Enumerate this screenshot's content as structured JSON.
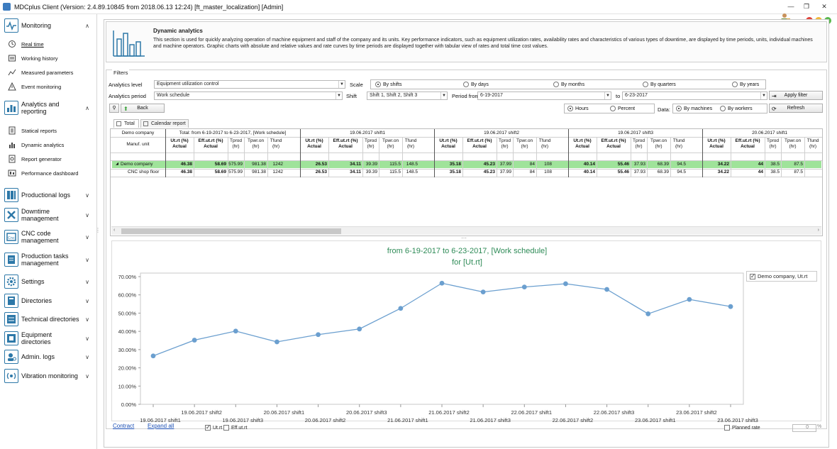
{
  "window": {
    "title": "MDCplus Client (Version: 2.4.89.10845 from 2018.06.13 12:24) [ft_master_localization]  [Admin]",
    "minimize": "—",
    "restore": "❐",
    "close": "✕"
  },
  "colors": {
    "accent": "#2d78a8",
    "green_row": "#9fe39a",
    "line": "#6b9fcf",
    "title_green": "#2e8b57",
    "dot_red": "#e0443b",
    "dot_yellow": "#f0b73a",
    "dot_green": "#59b84e"
  },
  "sidebar": {
    "groups": [
      {
        "label": "Monitoring",
        "icon": "monitoring-icon",
        "chev": "∧"
      },
      {
        "label": "Analytics and reporting",
        "icon": "analytics-icon",
        "chev": "∧"
      },
      {
        "label": "Productional logs",
        "icon": "logs-icon",
        "chev": "∨"
      },
      {
        "label": "Downtime management",
        "icon": "tools-icon",
        "chev": "∨"
      },
      {
        "label": "CNC code management",
        "icon": "cnc-icon",
        "chev": "∨"
      },
      {
        "label": "Production tasks management",
        "icon": "tasks-icon",
        "chev": "∨"
      },
      {
        "label": "Settings",
        "icon": "gear-icon",
        "chev": "∨"
      },
      {
        "label": "Directories",
        "icon": "directory-icon",
        "chev": "∨"
      },
      {
        "label": "Technical directories",
        "icon": "tech-directory-icon",
        "chev": "∨"
      },
      {
        "label": "Equipment directories",
        "icon": "equipment-directory-icon",
        "chev": "∨"
      },
      {
        "label": "Admin. logs",
        "icon": "admin-logs-icon",
        "chev": "∨"
      },
      {
        "label": "Vibration monitoring",
        "icon": "vibration-icon",
        "chev": "∨"
      }
    ],
    "monitoring_items": [
      "Real time",
      "Working history",
      "Measured parameters",
      "Event monitoring"
    ],
    "analytics_items": [
      "Statical reports",
      "Dynamic analytics",
      "Report generator",
      "Performance dashboard"
    ]
  },
  "header": {
    "title": "Dynamic analytics",
    "description": "This section is used for quickly analyzing operation of machine equipment and staff of the company and its units. Key performance indicators, such as equipment utilization rates, availability rates and characteristics of various types of downtime, are displayed by time periods, units, individual machines and machine operators. Graphic charts with absolute and relative values and rate curves by time periods are displayed together with tabular view of rates and total time cost values."
  },
  "filters": {
    "legend": "Filters",
    "analytics_level_label": "Analytics level",
    "analytics_level_value": "Equipment utilization control",
    "scale_label": "Scale",
    "scale_options": [
      "By shifts",
      "By days",
      "By months",
      "By quarters",
      "By years"
    ],
    "analytics_period_label": "Analytics period",
    "analytics_period_value": "Work schedule",
    "shift_label": "Shift",
    "shift_value": "Shift 1, Shift 2, Shift 3",
    "period_from_label": "Period from",
    "period_from_value": "6-19-2017",
    "period_to_label": "to",
    "period_to_value": "6-23-2017",
    "apply_filter": "Apply filter",
    "back": "Back",
    "unit_options": [
      "Hours",
      "Percent"
    ],
    "data_label": "Data:",
    "data_options": [
      "By machines",
      "By workers"
    ],
    "refresh": "Refresh"
  },
  "tabs": [
    "Total",
    "Calendar report"
  ],
  "grid": {
    "company_header": "Demo company",
    "unit_header": "Manuf. unit",
    "groups": [
      "Total: from 6-19-2017 to 6-23-2017, [Work schedule]",
      "19.06.2017  shift1",
      "19.06.2017  shift2",
      "19.06.2017  shift3",
      "20.06.2017  shift1"
    ],
    "cols": [
      "Ut.rt (%) Actual",
      "Eff.ut.rt (%) Actual",
      "Tprod (hr)",
      "Tpwr.on (hr)",
      "Tfund (hr)"
    ],
    "rows": [
      {
        "name": "Demo company",
        "expander": "▲",
        "values": [
          "46.38",
          "58.69",
          "575.99",
          "981.38",
          "1242",
          "26.53",
          "34.11",
          "39.39",
          "115.5",
          "148.5",
          "35.18",
          "45.23",
          "37.99",
          "84",
          "108",
          "40.14",
          "55.46",
          "37.93",
          "68.39",
          "94.5",
          "34.22",
          "44",
          "38.5",
          "87.5"
        ]
      },
      {
        "name": "CNC shop floor",
        "expander": "",
        "values": [
          "46.38",
          "58.69",
          "575.99",
          "981.38",
          "1242",
          "26.53",
          "34.11",
          "39.39",
          "115.5",
          "148.5",
          "35.18",
          "45.23",
          "37.99",
          "84",
          "108",
          "40.14",
          "55.46",
          "37.93",
          "68.39",
          "94.5",
          "34.22",
          "44",
          "38.5",
          "87.5"
        ]
      }
    ]
  },
  "chart_data": {
    "type": "line",
    "title": "from 6-19-2017 to 6-23-2017, [Work schedule]",
    "subtitle": "for [Ut.rt]",
    "categories": [
      "19.06.2017  shift1",
      "19.06.2017  shift2",
      "19.06.2017  shift3",
      "20.06.2017  shift1",
      "20.06.2017  shift2",
      "20.06.2017  shift3",
      "21.06.2017  shift1",
      "21.06.2017  shift2",
      "21.06.2017  shift3",
      "22.06.2017  shift1",
      "22.06.2017  shift2",
      "22.06.2017  shift3",
      "23.06.2017  shift1",
      "23.06.2017  shift2",
      "23.06.2017  shift3"
    ],
    "series": [
      {
        "name": "Demo company, Ut.rt",
        "values": [
          26.53,
          35.18,
          40.14,
          34.22,
          38.2,
          41.3,
          52.6,
          66.4,
          61.6,
          64.3,
          66.1,
          63.0,
          49.6,
          57.5,
          53.6
        ]
      }
    ],
    "yticks": [
      "0.00%",
      "10.00%",
      "20.00%",
      "30.00%",
      "40.00%",
      "50.00%",
      "60.00%",
      "70.00%"
    ],
    "ylim": [
      0,
      70
    ],
    "grid": true,
    "legend": "top-right"
  },
  "bottom": {
    "contract": "Contract",
    "expand_all": "Expand all",
    "ut_rt": "Ut.rt",
    "eff_ut_rt": "Eff.ut.rt",
    "planned_rate": "Planned rate",
    "spin_value": "0",
    "spin_unit": "%"
  }
}
